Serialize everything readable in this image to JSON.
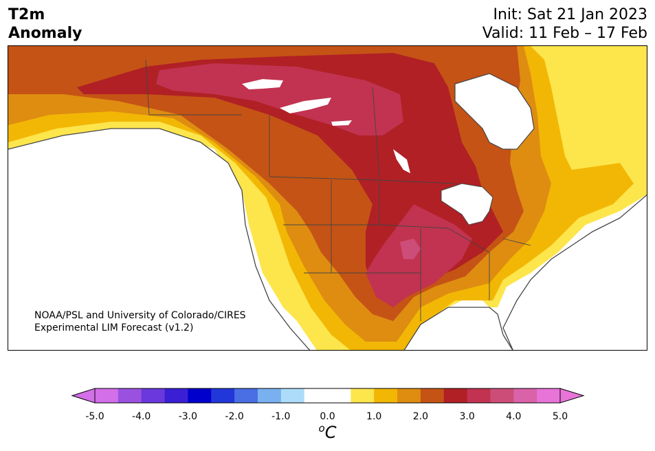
{
  "header": {
    "title_line1": "T2m",
    "title_line2": "Anomaly",
    "init": "Init: Sat 21 Jan 2023",
    "valid": "Valid: 11 Feb – 17 Feb"
  },
  "credit": {
    "line1": "NOAA/PSL and University of Colorado/CIRES",
    "line2": "Experimental LIM Forecast (v1.2)"
  },
  "colorbar": {
    "colors": [
      "#d36fe8",
      "#9a51e0",
      "#6a38dc",
      "#3a1fd4",
      "#0000cd",
      "#2237d9",
      "#4a6ee3",
      "#79b0f0",
      "#acdcfa",
      "#ffffff",
      "#ffffff",
      "#fde54c",
      "#f2b705",
      "#de8d11",
      "#c55315",
      "#b02025",
      "#c13350",
      "#cd4d79",
      "#d962a8",
      "#e874d8"
    ],
    "extend_low": "#d36fe8",
    "extend_high": "#e874d8",
    "tick_labels": [
      "-5.0",
      "-4.0",
      "-3.0",
      "-2.0",
      "-1.0",
      "0.0",
      "1.0",
      "2.0",
      "3.0",
      "4.0",
      "5.0"
    ],
    "unit_sup": "o",
    "unit": "C"
  },
  "map_colors": {
    "level1": "#fde54c",
    "level2": "#f2b705",
    "level3": "#de8d11",
    "level4": "#c55315",
    "level5": "#b02025",
    "level6": "#c13350",
    "level7": "#cd4d79",
    "land_outline": "#444444"
  }
}
